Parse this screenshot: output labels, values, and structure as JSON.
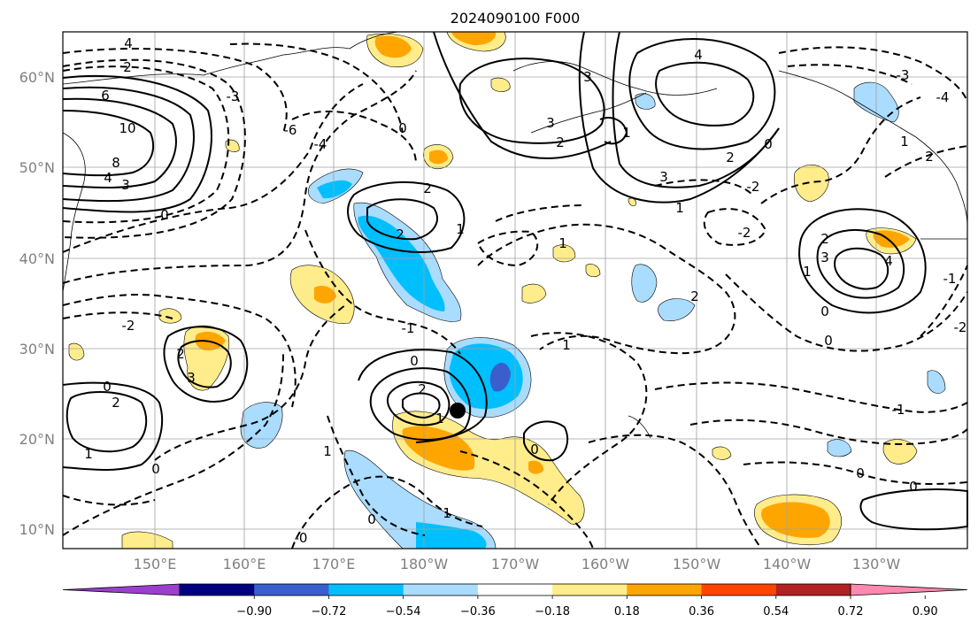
{
  "title": "2024090100 F000",
  "latitude_labels": [
    "60°N",
    "50°N",
    "40°N",
    "30°N",
    "20°N",
    "10°N"
  ],
  "longitude_labels": [
    "150°E",
    "160°E",
    "170°E",
    "180°W",
    "170°W",
    "160°W",
    "150°W",
    "140°W",
    "130°W"
  ],
  "colorbar": {
    "tick_labels": [
      "−0.90",
      "−0.72",
      "−0.54",
      "−0.36",
      "−0.18",
      "0.18",
      "0.36",
      "0.54",
      "0.72",
      "0.90"
    ],
    "colors": [
      "#9b3fd0",
      "#000080",
      "#3a5fcd",
      "#00bfff",
      "#aadcff",
      "#ffffff",
      "#ffec8b",
      "#ffa500",
      "#ff4500",
      "#b22222",
      "#ff89b0"
    ]
  },
  "storm_marker": {
    "lon": -175.5,
    "lat": 23
  }
}
